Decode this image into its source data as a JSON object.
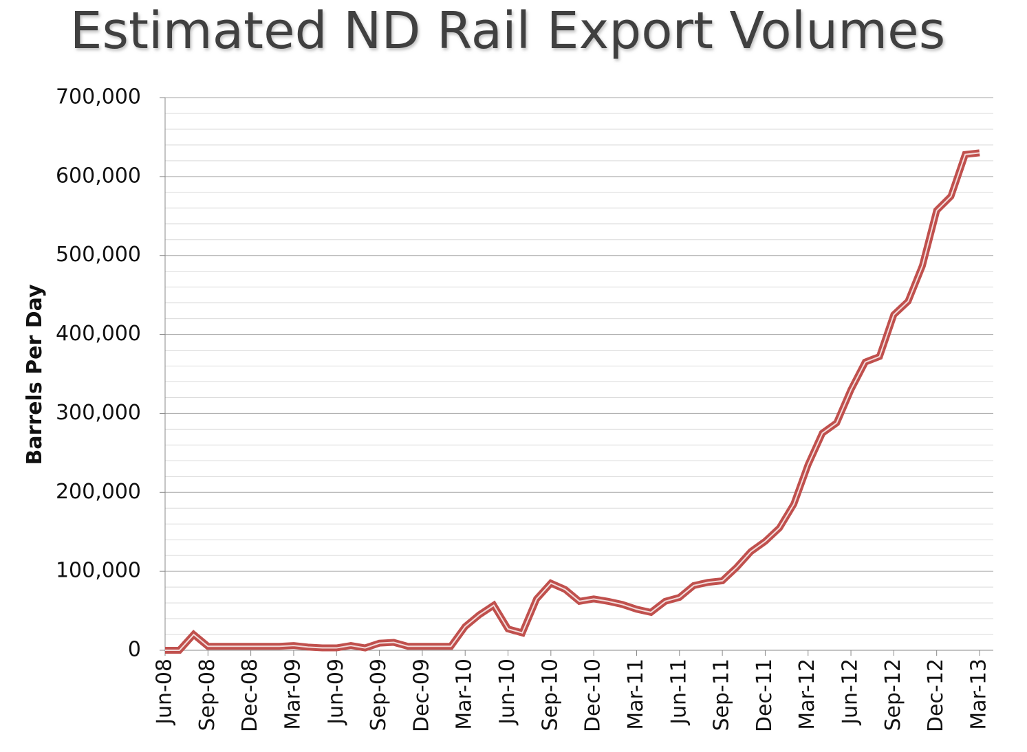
{
  "chart_data": {
    "type": "line",
    "title": "Estimated ND Rail Export Volumes",
    "y_label": "Barrels Per Day",
    "categories": [
      "Jun-08",
      null,
      null,
      "Sep-08",
      null,
      null,
      "Dec-08",
      null,
      null,
      "Mar-09",
      null,
      null,
      "Jun-09",
      null,
      null,
      "Sep-09",
      null,
      null,
      "Dec-09",
      null,
      null,
      "Mar-10",
      null,
      null,
      "Jun-10",
      null,
      null,
      "Sep-10",
      null,
      null,
      "Dec-10",
      null,
      null,
      "Mar-11",
      null,
      null,
      "Jun-11",
      null,
      null,
      "Sep-11",
      null,
      null,
      "Dec-11",
      null,
      null,
      "Mar-12",
      null,
      null,
      "Jun-12",
      null,
      null,
      "Sep-12",
      null,
      null,
      "Dec-12",
      null,
      null,
      "Mar-13"
    ],
    "series": [
      {
        "name": "Barrels Per Day",
        "color": "#c0504d",
        "values": [
          0,
          0,
          20000,
          5000,
          5000,
          5000,
          5000,
          5000,
          5000,
          6000,
          4000,
          3000,
          3000,
          6000,
          3000,
          9000,
          10000,
          5000,
          5000,
          5000,
          5000,
          30000,
          45000,
          57000,
          27000,
          22000,
          65000,
          85000,
          77000,
          62000,
          65000,
          62000,
          58000,
          52000,
          48000,
          62000,
          67000,
          82000,
          86000,
          88000,
          105000,
          125000,
          138000,
          155000,
          185000,
          235000,
          275000,
          288000,
          330000,
          365000,
          372000,
          425000,
          442000,
          487000,
          557000,
          575000,
          628000,
          630000
        ]
      }
    ],
    "ylim": [
      0,
      700000
    ],
    "yticks": [
      {
        "value": 0,
        "label": "0"
      },
      {
        "value": 100000,
        "label": "100,000"
      },
      {
        "value": 200000,
        "label": "200,000"
      },
      {
        "value": 300000,
        "label": "300,000"
      },
      {
        "value": 400000,
        "label": "400,000"
      },
      {
        "value": 500000,
        "label": "500,000"
      },
      {
        "value": 600000,
        "label": "600,000"
      },
      {
        "value": 700000,
        "label": "700,000"
      }
    ],
    "minor_yticks": [
      20000,
      40000,
      60000,
      80000,
      120000,
      140000,
      160000,
      180000,
      220000,
      240000,
      260000,
      280000,
      320000,
      340000,
      360000,
      380000,
      420000,
      440000,
      460000,
      480000,
      520000,
      540000,
      560000,
      580000,
      620000,
      640000,
      660000,
      680000
    ],
    "grid": true
  }
}
